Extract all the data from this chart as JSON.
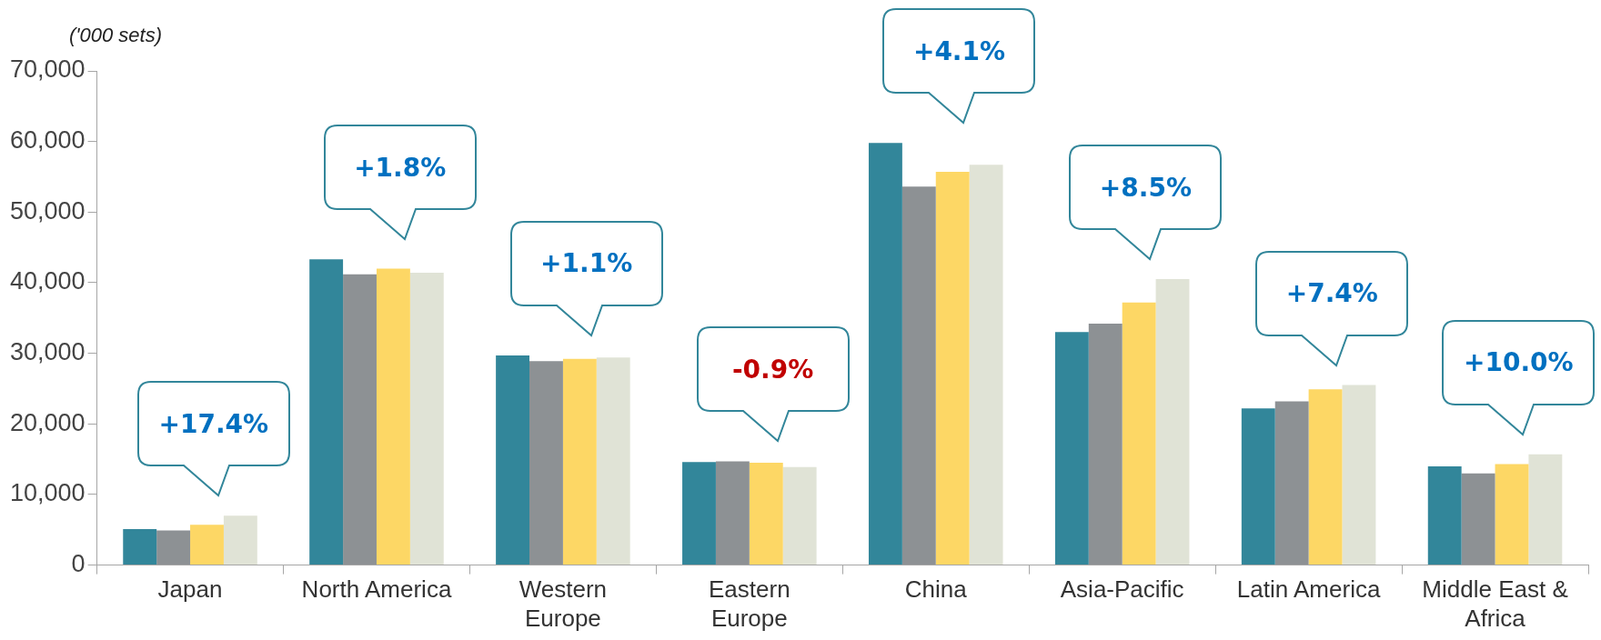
{
  "chart_data": {
    "type": "bar",
    "ylabel": "('000 sets)",
    "categories": [
      "Japan",
      "North America",
      "Western Europe",
      "Eastern Europe",
      "China",
      "Asia-Pacific",
      "Latin America",
      "Middle East & Africa"
    ],
    "series": [
      {
        "color": "#32869a",
        "values": [
          5100,
          43300,
          29700,
          14600,
          59800,
          33000,
          22200,
          14000
        ]
      },
      {
        "color": "#8d9194",
        "values": [
          4900,
          41200,
          28900,
          14700,
          53600,
          34200,
          23200,
          13000
        ]
      },
      {
        "color": "#fdd765",
        "values": [
          5700,
          42000,
          29200,
          14500,
          55700,
          37200,
          24900,
          14300
        ]
      },
      {
        "color": "#e0e3d6",
        "values": [
          7000,
          41400,
          29400,
          13900,
          56700,
          40500,
          25500,
          15700
        ]
      }
    ],
    "ylim": [
      0,
      70000
    ],
    "yticks": [
      {
        "value": 0,
        "label": "0"
      },
      {
        "value": 10000,
        "label": "10,000"
      },
      {
        "value": 20000,
        "label": "20,000"
      },
      {
        "value": 30000,
        "label": "30,000"
      },
      {
        "value": 40000,
        "label": "40,000"
      },
      {
        "value": 50000,
        "label": "50,000"
      },
      {
        "value": 60000,
        "label": "60,000"
      },
      {
        "value": 70000,
        "label": "70,000"
      }
    ],
    "grid": false,
    "legend": false,
    "annotations": [
      "+17.4%",
      "+1.8%",
      "+1.1%",
      "-0.9%",
      "+4.1%",
      "+8.5%",
      "+7.4%",
      "+10.0%"
    ]
  }
}
